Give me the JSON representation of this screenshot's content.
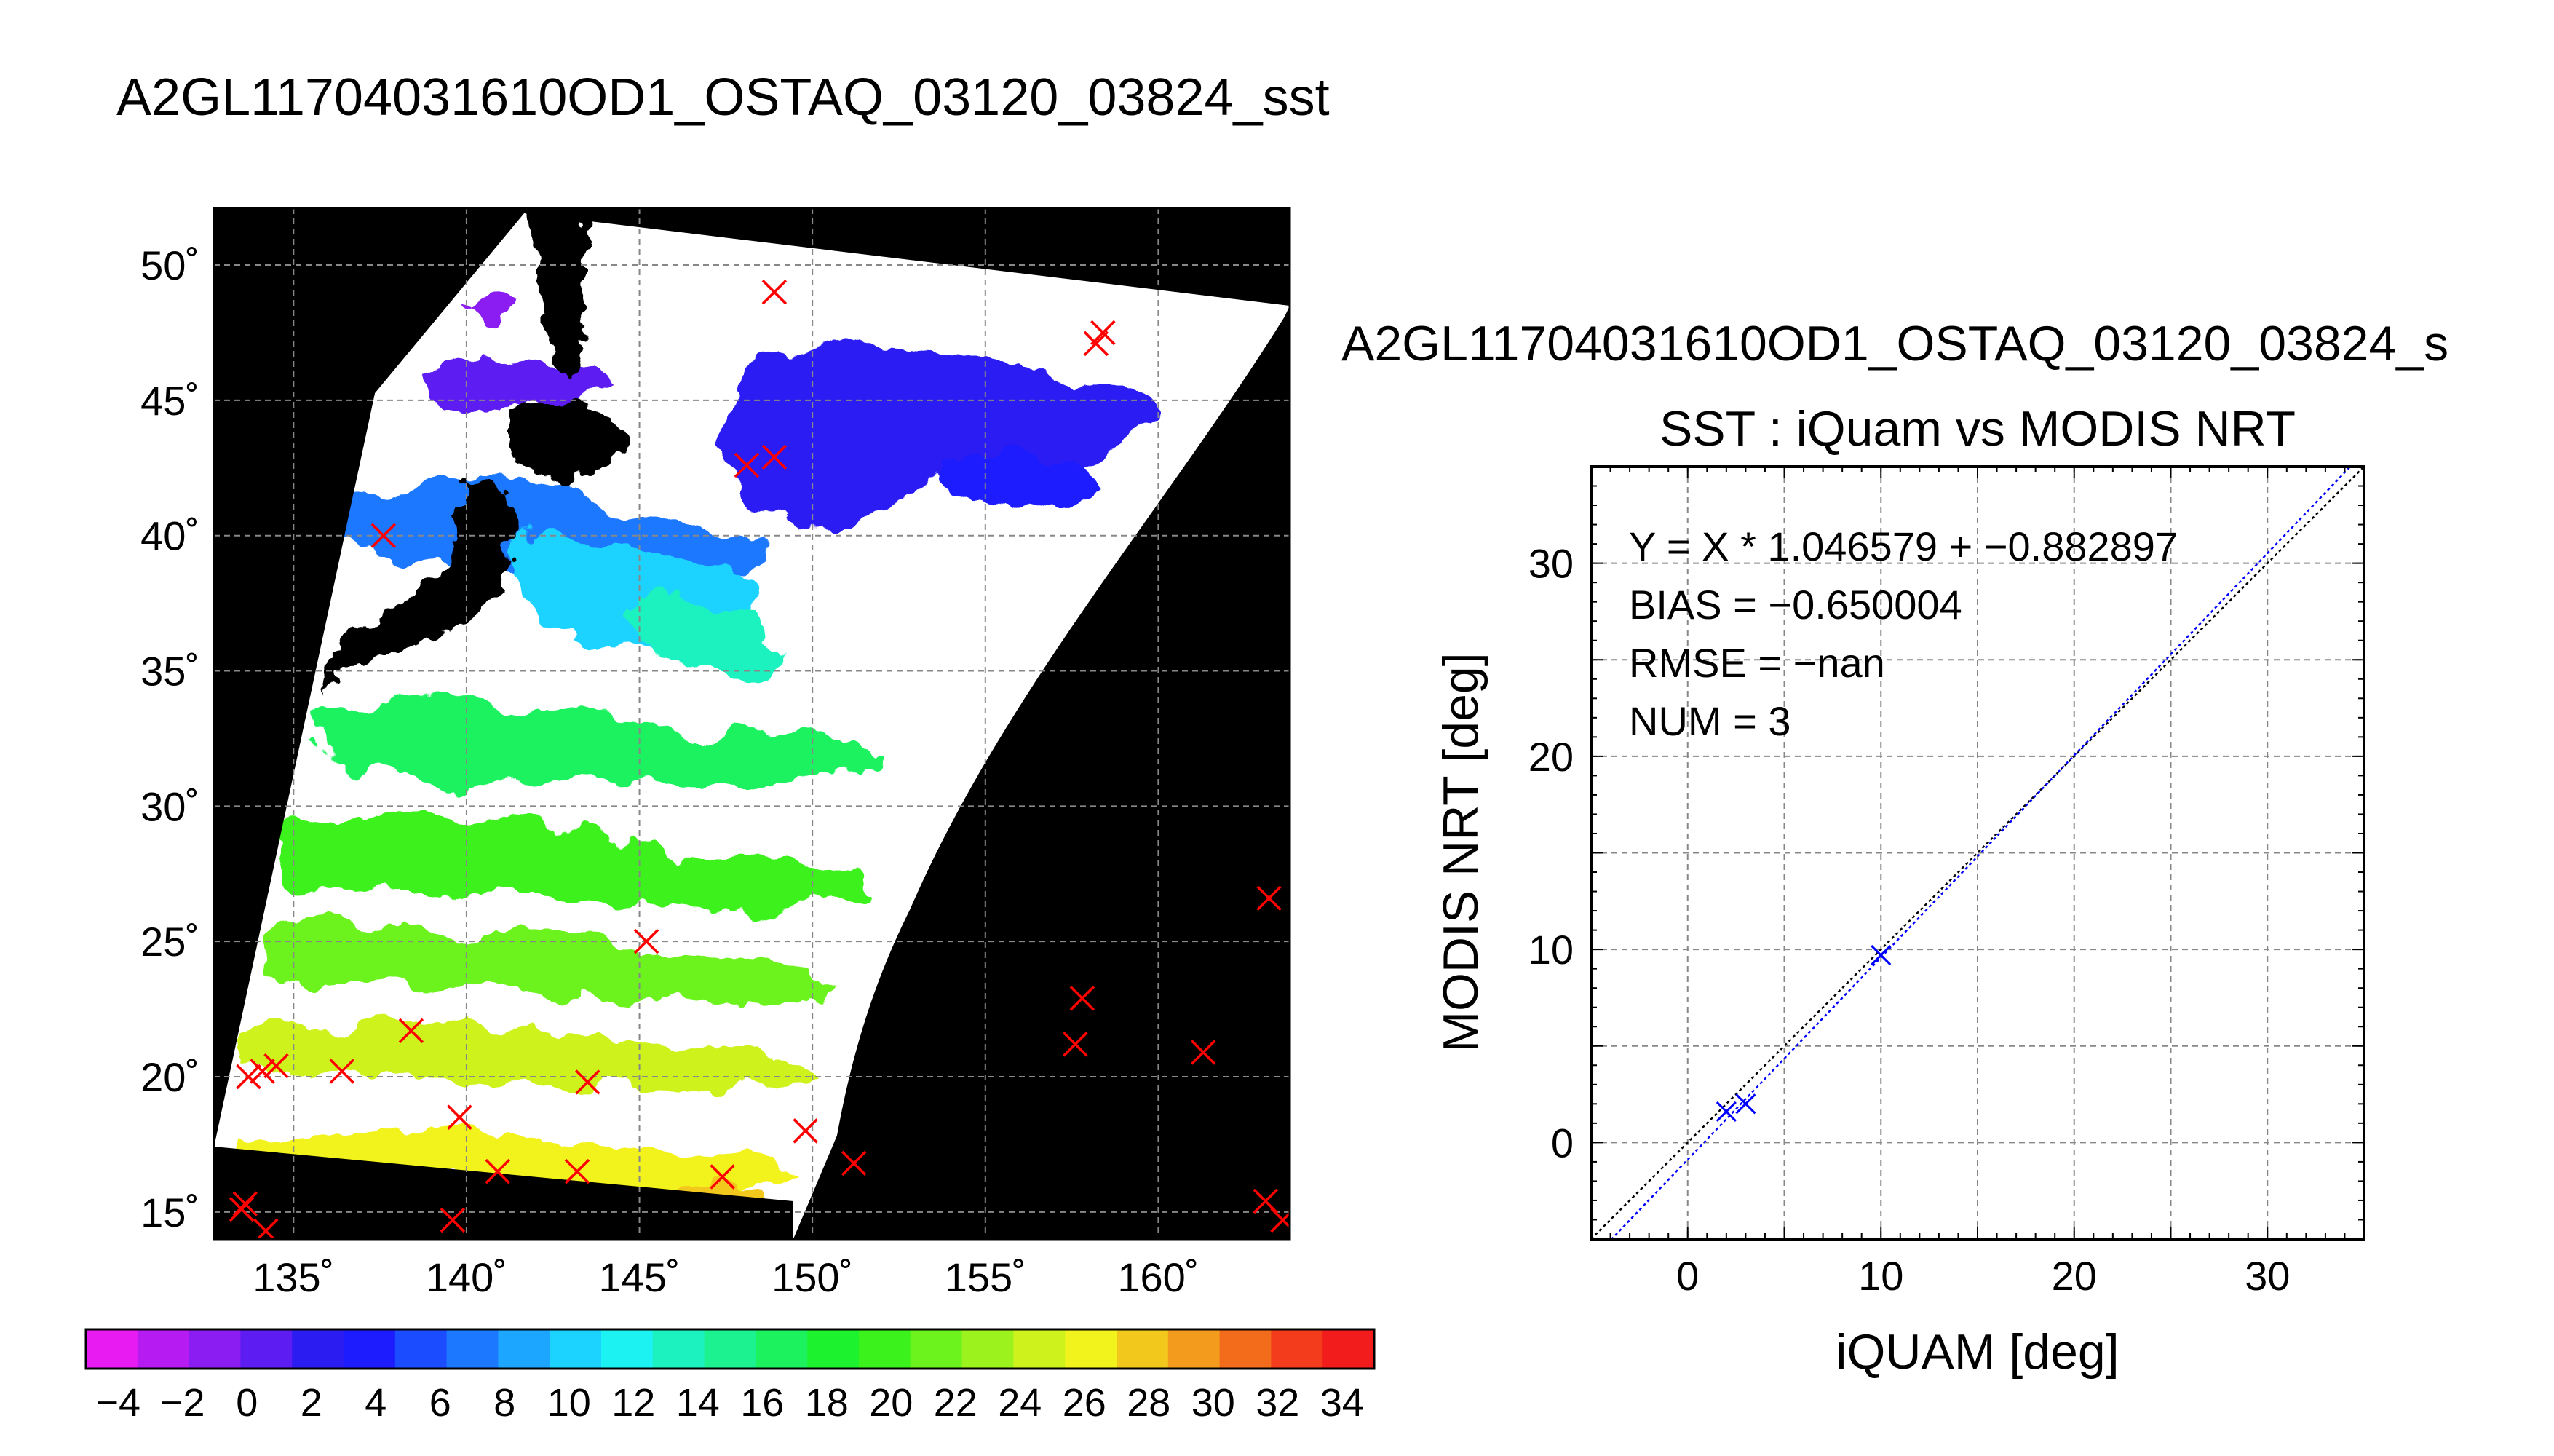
{
  "page_title": "A2GL11704031610OD1_OSTAQ_03120_03824_sst",
  "chart_data": [
    {
      "type": "map",
      "title": "",
      "lon_ticks": [
        "135˚",
        "140˚",
        "145˚",
        "150˚",
        "155˚",
        "160˚"
      ],
      "lon_tick_values": [
        135,
        140,
        145,
        150,
        155,
        160
      ],
      "lat_ticks": [
        "15˚",
        "20˚",
        "25˚",
        "30˚",
        "35˚",
        "40˚",
        "45˚",
        "50˚"
      ],
      "lat_tick_values": [
        15,
        20,
        25,
        30,
        35,
        40,
        45,
        50
      ],
      "lon_range": [
        132.7,
        163.8
      ],
      "lat_range": [
        14.0,
        52.1
      ],
      "grid": true,
      "land_color": "#000000",
      "cloud_color": "#ffffff",
      "markers": {
        "symbol": "x",
        "color": "#ff0000",
        "points": [
          [
            148.9,
            49.0
          ],
          [
            158.4,
            47.5
          ],
          [
            158.2,
            47.1
          ],
          [
            137.6,
            40.0
          ],
          [
            148.1,
            42.6
          ],
          [
            148.9,
            42.9
          ],
          [
            145.2,
            25.0
          ],
          [
            138.4,
            21.7
          ],
          [
            133.7,
            20.0
          ],
          [
            134.1,
            20.2
          ],
          [
            134.5,
            20.4
          ],
          [
            136.4,
            20.2
          ],
          [
            139.8,
            18.5
          ],
          [
            143.5,
            19.8
          ],
          [
            149.8,
            18.0
          ],
          [
            157.8,
            22.9
          ],
          [
            157.6,
            21.2
          ],
          [
            161.3,
            20.9
          ],
          [
            163.2,
            26.6
          ],
          [
            140.9,
            16.5
          ],
          [
            143.2,
            16.5
          ],
          [
            147.4,
            16.3
          ],
          [
            151.2,
            16.8
          ],
          [
            133.6,
            15.3
          ],
          [
            133.5,
            15.1
          ],
          [
            134.2,
            14.3
          ],
          [
            139.6,
            14.7
          ],
          [
            163.1,
            15.4
          ],
          [
            163.6,
            14.7
          ]
        ]
      }
    },
    {
      "type": "colorbar",
      "tick_labels": [
        "−4",
        "−2",
        "0",
        "2",
        "4",
        "6",
        "8",
        "10",
        "12",
        "14",
        "16",
        "18",
        "20",
        "22",
        "24",
        "26",
        "28",
        "30",
        "32",
        "34"
      ],
      "range": [
        -5,
        35
      ],
      "step": 2,
      "colors": [
        "#e81cf2",
        "#b61cf2",
        "#8b1cf2",
        "#5c1cf2",
        "#2b1cf2",
        "#1c1cff",
        "#1c4cff",
        "#1c78ff",
        "#1ca6ff",
        "#1cd2ff",
        "#1cf2f2",
        "#1cf2c0",
        "#1cf28f",
        "#1cf25e",
        "#1cf22d",
        "#3cf21c",
        "#6cf21c",
        "#9cf21c",
        "#cdf21c",
        "#f2f21c",
        "#f2c81c",
        "#f29b1c",
        "#f26c1c",
        "#f23c1c",
        "#f21c1c"
      ]
    },
    {
      "type": "scatter",
      "file_title": "A2GL11704031610OD1_OSTAQ_03120_03824_s",
      "title": "SST : iQuam vs MODIS NRT",
      "xlabel": "iQUAM [deg]",
      "ylabel": "MODIS NRT [deg]",
      "xlim": [
        -5,
        35
      ],
      "ylim": [
        -5,
        35
      ],
      "x_ticks": [
        0,
        10,
        20,
        30
      ],
      "y_ticks": [
        0,
        10,
        20,
        30
      ],
      "grid": true,
      "points": {
        "x": [
          2.0,
          3.0,
          10.0
        ],
        "y": [
          1.6,
          2.0,
          9.7
        ],
        "marker": "x",
        "color": "#0000ff"
      },
      "fit_line": {
        "slope": 1.046579,
        "intercept": -0.882897,
        "color": "#0000ff",
        "style": "dotted"
      },
      "identity_line": {
        "slope": 1,
        "intercept": 0,
        "color": "#000000",
        "style": "dotted"
      },
      "stats": [
        "Y = X * 1.046579 + −0.882897",
        "BIAS = −0.650004",
        "RMSE = −nan",
        "NUM = 3"
      ]
    }
  ]
}
